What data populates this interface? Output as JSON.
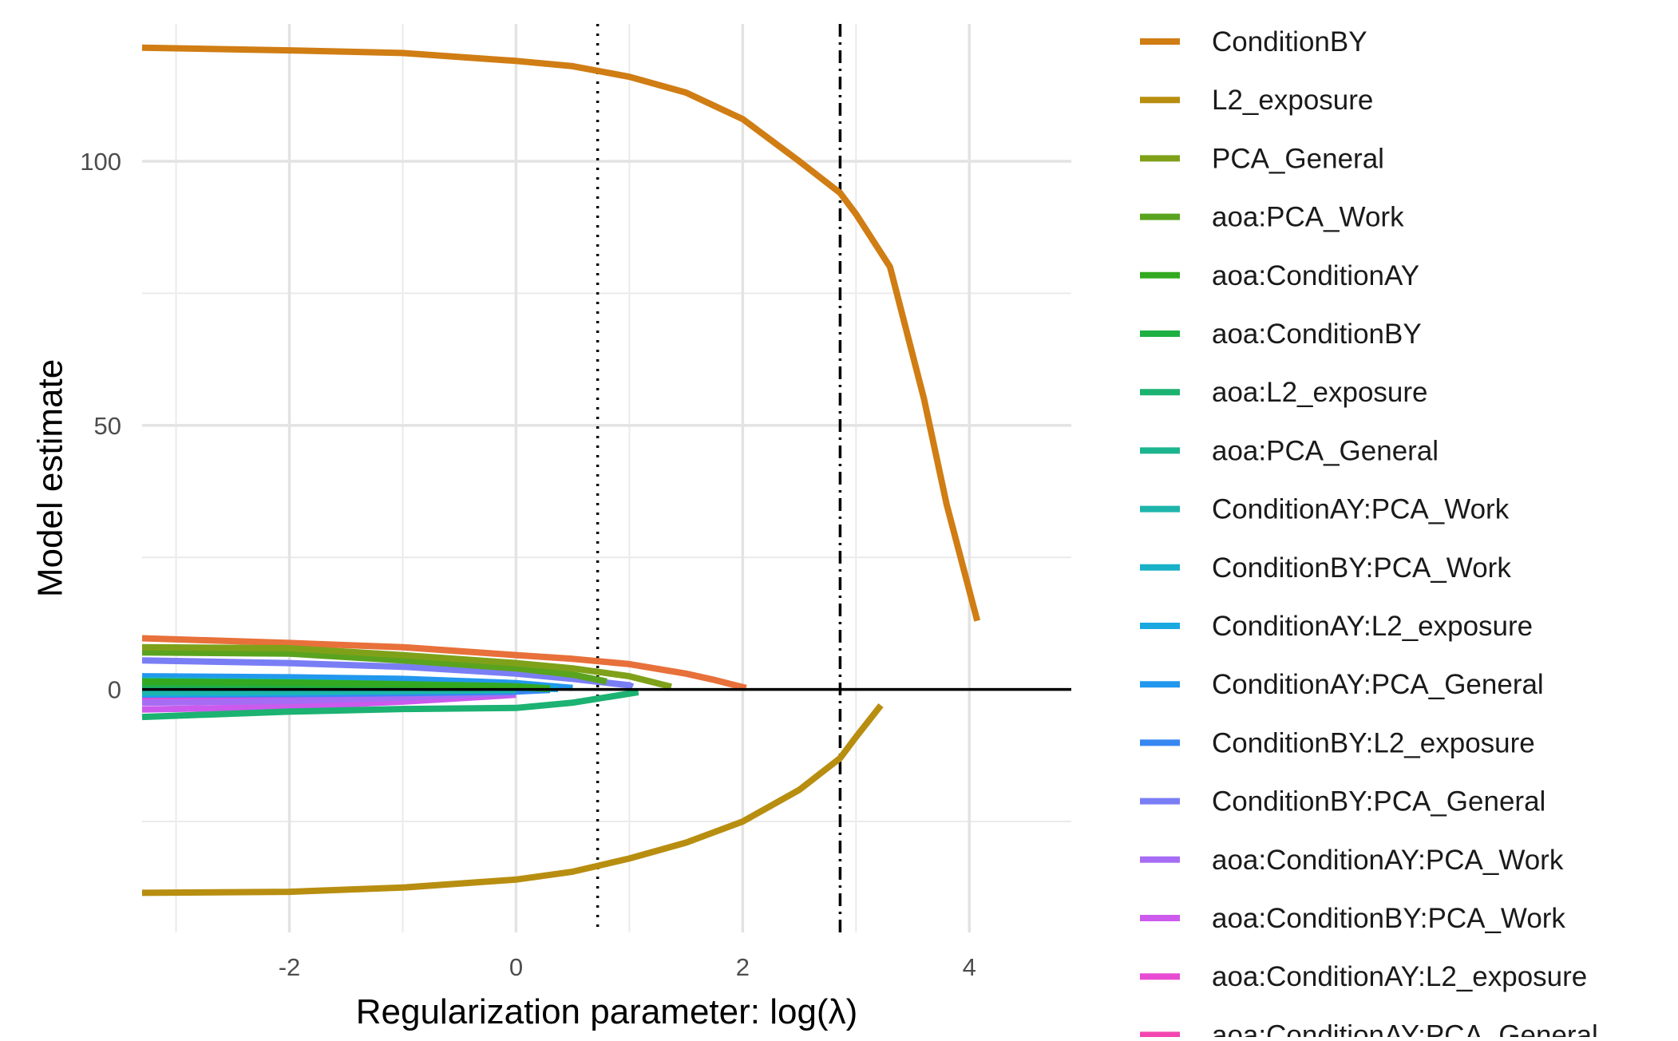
{
  "chart_data": {
    "type": "line",
    "title": "",
    "xlabel": "Regularization parameter: log(λ)",
    "ylabel": "Model estimate",
    "xlim": [
      -3.3,
      4.9
    ],
    "ylim": [
      -46,
      126
    ],
    "x_ticks": [
      -2,
      0,
      2,
      4
    ],
    "x_tick_labels": [
      "-2",
      "0",
      "2",
      "4"
    ],
    "y_ticks": [
      0,
      50,
      100
    ],
    "y_tick_labels": [
      "0",
      "50",
      "100"
    ],
    "x_minor_ticks": [
      -3,
      -1,
      1,
      3
    ],
    "y_minor_ticks": [
      -25,
      25,
      75
    ],
    "grid": true,
    "legend_position": "right",
    "hline": {
      "y": 0,
      "style": "solid",
      "color": "#000000"
    },
    "vlines": [
      {
        "x": 0.72,
        "style": "dotted"
      },
      {
        "x": 2.86,
        "style": "dotdash"
      }
    ],
    "series": [
      {
        "name": "ConditionBY",
        "color": "#D07D14",
        "x": [
          -3.3,
          -2,
          -1,
          0,
          0.5,
          1,
          1.5,
          2,
          2.5,
          2.86,
          3,
          3.3,
          3.6,
          3.8,
          4.07
        ],
        "y": [
          121.5,
          121,
          120.5,
          119,
          118,
          116,
          113,
          108,
          100,
          94,
          90,
          80,
          55,
          35,
          13
        ]
      },
      {
        "name": "L2_exposure",
        "color": "#B88E10",
        "x": [
          -3.3,
          -2,
          -1,
          0,
          0.5,
          1,
          1.5,
          2,
          2.5,
          2.86,
          3,
          3.22
        ],
        "y": [
          -38.5,
          -38.3,
          -37.5,
          -36,
          -34.5,
          -32,
          -29,
          -25,
          -19,
          -13,
          -9,
          -3
        ]
      },
      {
        "name": "PCA_General",
        "color": "#7FA11A",
        "x": [
          -3.3,
          -2,
          -1,
          0,
          0.5,
          1,
          1.37
        ],
        "y": [
          8,
          7.8,
          6.5,
          5,
          4,
          2.5,
          0.5
        ]
      },
      {
        "name": "aoa:PCA_Work",
        "color": "#5AA31F",
        "x": [
          -3.3,
          -2,
          -1,
          0,
          0.5,
          0.8
        ],
        "y": [
          7,
          6.8,
          5.5,
          4,
          2.8,
          1.5
        ]
      },
      {
        "name": "aoa:ConditionAY",
        "color": "#33A921",
        "x": [
          -3.3,
          -2,
          -1,
          0,
          0.3
        ],
        "y": [
          1.5,
          1.3,
          1,
          0.6,
          0.2
        ]
      },
      {
        "name": "aoa:ConditionBY",
        "color": "#1FAF42",
        "x": [
          -3.3,
          -2,
          -1,
          0,
          0.3
        ],
        "y": [
          1,
          0.9,
          0.7,
          0.4,
          0.1
        ]
      },
      {
        "name": "aoa:L2_exposure",
        "color": "#1BB272",
        "x": [
          -3.3,
          -2,
          -1,
          0,
          0.5,
          1.08
        ],
        "y": [
          -5.2,
          -4.2,
          -3.7,
          -3.5,
          -2.5,
          -0.5
        ]
      },
      {
        "name": "aoa:PCA_General",
        "color": "#1CB48E",
        "x": [
          -3.3,
          -2,
          -1,
          -0.3
        ],
        "y": [
          0.5,
          0.4,
          0.3,
          0.1
        ]
      },
      {
        "name": "ConditionAY:PCA_Work",
        "color": "#1DB5AB",
        "x": [
          -3.3,
          -2,
          -1,
          0
        ],
        "y": [
          -0.5,
          -0.4,
          -0.3,
          -0.1
        ]
      },
      {
        "name": "ConditionBY:PCA_Work",
        "color": "#19B1C8",
        "x": [
          -3.3,
          -2,
          -1,
          0
        ],
        "y": [
          1.8,
          1.5,
          1,
          0.4
        ]
      },
      {
        "name": "ConditionAY:L2_exposure",
        "color": "#1AA8E1",
        "x": [
          -3.3,
          -2,
          -1,
          0,
          0.37
        ],
        "y": [
          -0.8,
          -0.6,
          -0.3,
          0.3,
          0.1
        ]
      },
      {
        "name": "ConditionAY:PCA_General",
        "color": "#2297EE",
        "x": [
          -3.3,
          -2,
          -1,
          0,
          0.5
        ],
        "y": [
          2.5,
          2.3,
          2,
          1.2,
          0.3
        ]
      },
      {
        "name": "ConditionBY:L2_exposure",
        "color": "#3687F2",
        "x": [
          -3.3,
          -2,
          -1,
          0,
          0.3
        ],
        "y": [
          -1,
          -0.9,
          -0.7,
          -0.4,
          -0.1
        ]
      },
      {
        "name": "ConditionBY:PCA_General",
        "color": "#7A7EF5",
        "x": [
          -3.3,
          -2,
          -1,
          0,
          0.5,
          1,
          1.03
        ],
        "y": [
          5.5,
          5,
          4.3,
          3,
          2,
          0.8,
          0.5
        ]
      },
      {
        "name": "aoa:ConditionAY:PCA_Work",
        "color": "#A76CF4",
        "x": [
          -3.3,
          -2,
          -1,
          0
        ],
        "y": [
          -2.5,
          -2.2,
          -1.5,
          -0.7
        ]
      },
      {
        "name": "aoa:ConditionBY:PCA_Work",
        "color": "#CC5AEC",
        "x": [
          -3.3,
          -2,
          -1,
          0
        ],
        "y": [
          -3.8,
          -3.3,
          -2.3,
          -1
        ]
      },
      {
        "name": "aoa:ConditionAY:L2_exposure",
        "color": "#E84CD2",
        "x": [
          -3.3,
          -2,
          -1,
          0
        ],
        "y": [
          -2,
          -1.7,
          -1.2,
          -0.6
        ]
      },
      {
        "name": "aoa:ConditionAY:PCA_General",
        "color": "#F346B0",
        "x": [
          -3.3,
          -2,
          -1,
          -0.3,
          0
        ],
        "y": [
          -1.5,
          -1.2,
          -0.8,
          -0.3,
          0
        ]
      },
      {
        "name": "",
        "color": "#E8703A",
        "x": [
          -3.3,
          -2,
          -1,
          0,
          0.5,
          1,
          1.5,
          1.75,
          2.03
        ],
        "y": [
          9.7,
          8.8,
          8,
          6.5,
          5.8,
          4.8,
          3,
          1.8,
          0.3
        ]
      }
    ]
  }
}
